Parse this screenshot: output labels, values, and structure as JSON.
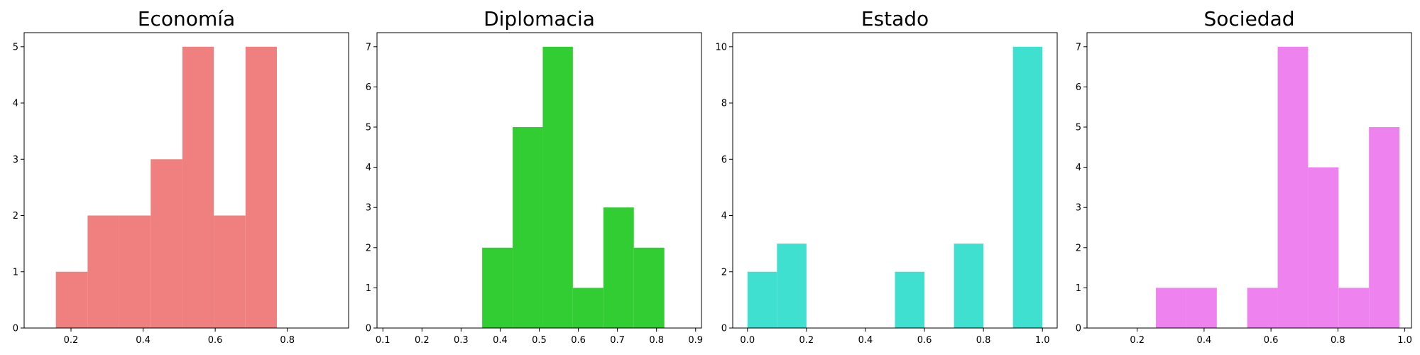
{
  "chart_data": [
    {
      "type": "bar",
      "title": "Economía",
      "color": "#F08080",
      "xlim": [
        0.07,
        0.97
      ],
      "ylim": [
        0,
        5.25
      ],
      "xticks": [
        0.2,
        0.4,
        0.6,
        0.8
      ],
      "xtick_labels": [
        "0.2",
        "0.4",
        "0.6",
        "0.8"
      ],
      "yticks": [
        0,
        1,
        2,
        3,
        4,
        5
      ],
      "ytick_labels": [
        "0",
        "1",
        "2",
        "3",
        "4",
        "5"
      ],
      "bins": [
        [
          0.158,
          0.246
        ],
        [
          0.246,
          0.333
        ],
        [
          0.333,
          0.421
        ],
        [
          0.421,
          0.509
        ],
        [
          0.509,
          0.596
        ],
        [
          0.596,
          0.684
        ],
        [
          0.684,
          0.771
        ]
      ],
      "values": [
        1,
        2,
        2,
        3,
        5,
        2,
        5
      ]
    },
    {
      "type": "bar",
      "title": "Diplomacia",
      "color": "#32CD32",
      "xlim": [
        0.085,
        0.915
      ],
      "ylim": [
        0,
        7.35
      ],
      "xticks": [
        0.1,
        0.2,
        0.3,
        0.4,
        0.5,
        0.6,
        0.7,
        0.8,
        0.9
      ],
      "xtick_labels": [
        "0.1",
        "0.2",
        "0.3",
        "0.4",
        "0.5",
        "0.6",
        "0.7",
        "0.8",
        "0.9"
      ],
      "yticks": [
        0,
        1,
        2,
        3,
        4,
        5,
        6,
        7
      ],
      "ytick_labels": [
        "0",
        "1",
        "2",
        "3",
        "4",
        "5",
        "6",
        "7"
      ],
      "bins": [
        [
          0.354,
          0.432
        ],
        [
          0.432,
          0.509
        ],
        [
          0.509,
          0.586
        ],
        [
          0.586,
          0.664
        ],
        [
          0.664,
          0.742
        ],
        [
          0.742,
          0.82
        ]
      ],
      "values": [
        2,
        5,
        7,
        1,
        3,
        2
      ]
    },
    {
      "type": "bar",
      "title": "Estado",
      "color": "#40E0D0",
      "xlim": [
        -0.05,
        1.05
      ],
      "ylim": [
        0,
        10.5
      ],
      "xticks": [
        0.0,
        0.2,
        0.4,
        0.6,
        0.8,
        1.0
      ],
      "xtick_labels": [
        "0.0",
        "0.2",
        "0.4",
        "0.6",
        "0.8",
        "1.0"
      ],
      "yticks": [
        0,
        2,
        4,
        6,
        8,
        10
      ],
      "ytick_labels": [
        "0",
        "2",
        "4",
        "6",
        "8",
        "10"
      ],
      "bins": [
        [
          0.0,
          0.1
        ],
        [
          0.1,
          0.2
        ],
        [
          0.5,
          0.6
        ],
        [
          0.7,
          0.8
        ],
        [
          0.9,
          1.0
        ]
      ],
      "values": [
        2,
        3,
        2,
        3,
        10
      ]
    },
    {
      "type": "bar",
      "title": "Sociedad",
      "color": "#EE82EE",
      "xlim": [
        0.05,
        1.02
      ],
      "ylim": [
        0,
        7.35
      ],
      "xticks": [
        0.2,
        0.4,
        0.6,
        0.8,
        1.0
      ],
      "xtick_labels": [
        "0.2",
        "0.4",
        "0.6",
        "0.8",
        "1.0"
      ],
      "yticks": [
        0,
        1,
        2,
        3,
        4,
        5,
        6,
        7
      ],
      "ytick_labels": [
        "0",
        "1",
        "2",
        "3",
        "4",
        "5",
        "6",
        "7"
      ],
      "bins": [
        [
          0.256,
          0.347
        ],
        [
          0.347,
          0.438
        ],
        [
          0.529,
          0.62
        ],
        [
          0.62,
          0.711
        ],
        [
          0.711,
          0.802
        ],
        [
          0.802,
          0.893
        ],
        [
          0.893,
          0.984
        ]
      ],
      "values": [
        1,
        1,
        1,
        7,
        4,
        1,
        5
      ]
    }
  ]
}
